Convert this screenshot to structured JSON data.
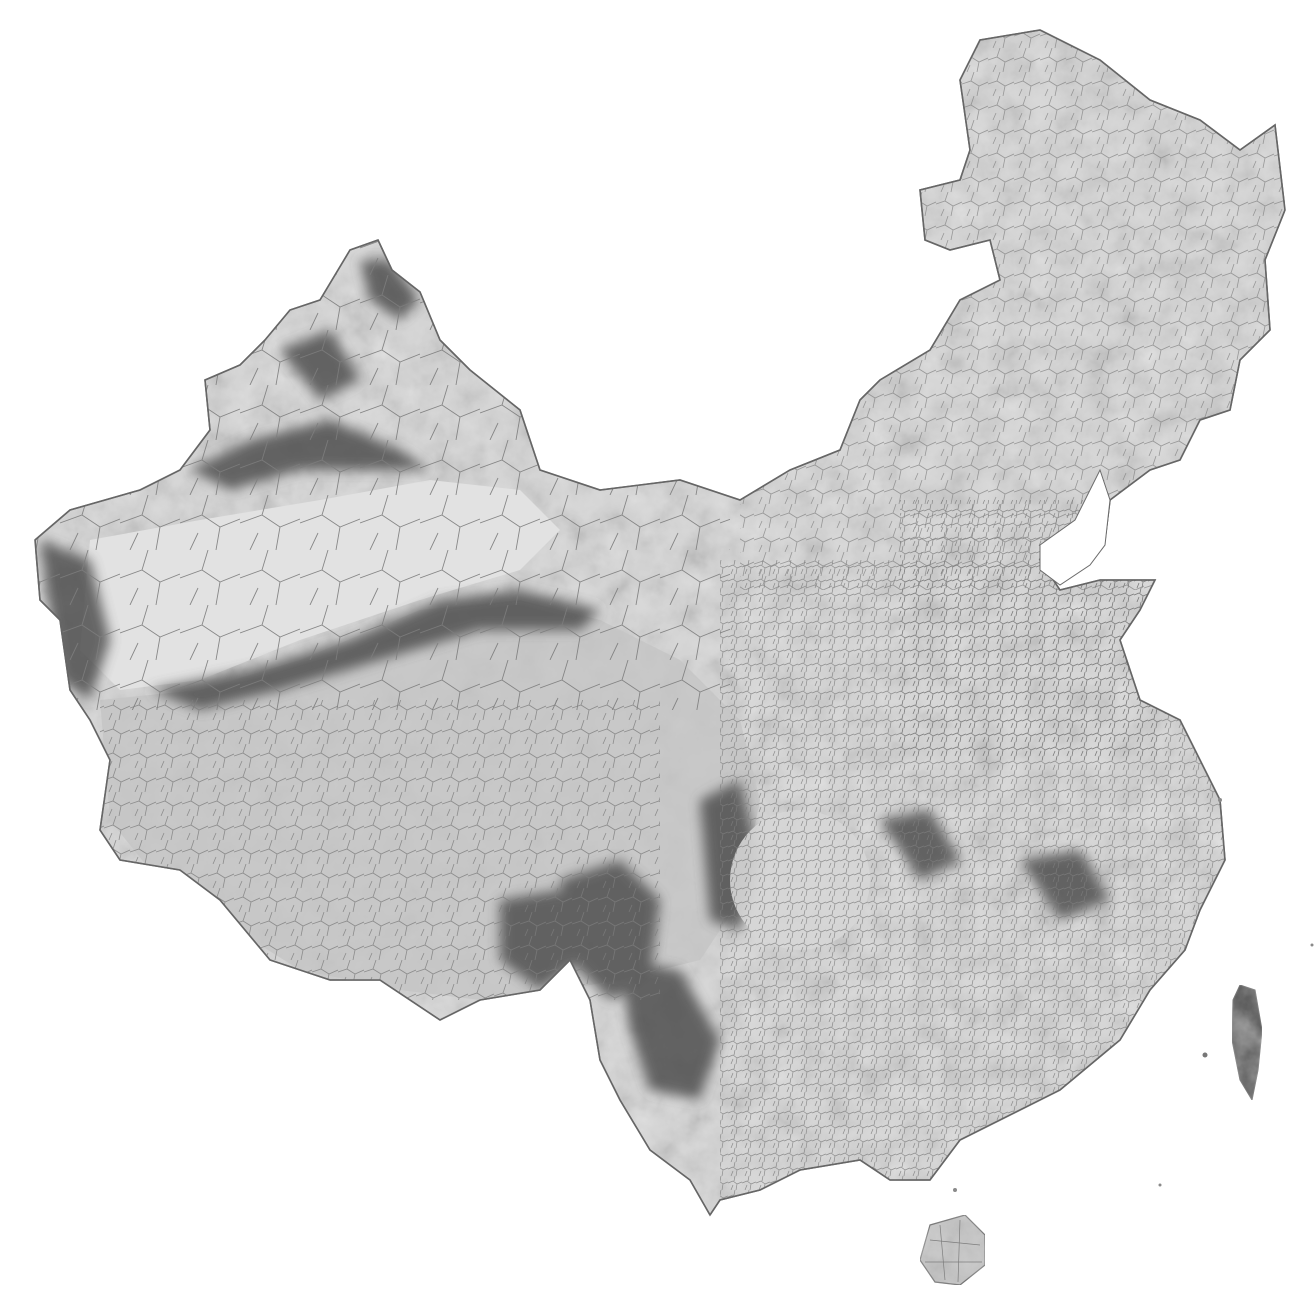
{
  "map": {
    "style": "grayscale shaded relief with county-level boundaries",
    "colors": {
      "background": "#ffffff",
      "land_light": "#dcdcdc",
      "land_mid": "#bdbdbd",
      "relief_dark": "#5a5a5a",
      "relief_darkest": "#474747",
      "boundary": "#7d7d7d",
      "coast": "#6a6a6a"
    },
    "regions": [
      {
        "name": "mainland",
        "tone": "land_light"
      },
      {
        "name": "tarim-basin",
        "tone": "land_light"
      },
      {
        "name": "sichuan-basin",
        "tone": "land_light"
      },
      {
        "name": "tibetan-plateau",
        "tone": "land_mid"
      },
      {
        "name": "taiwan",
        "tone": "relief_darkest"
      },
      {
        "name": "hainan",
        "tone": "land_mid"
      }
    ],
    "icons": []
  }
}
